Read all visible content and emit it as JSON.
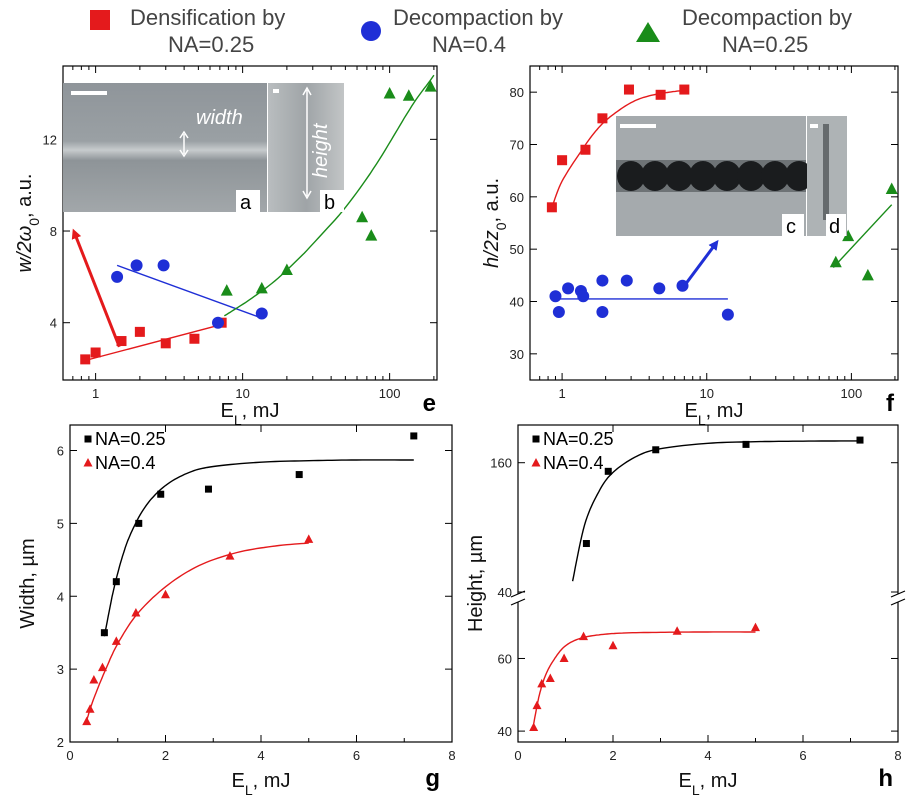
{
  "legend": [
    {
      "label_line1": "Densification by",
      "label_line2": "NA=0.25",
      "marker": "square",
      "color": "#e41a1c"
    },
    {
      "label_line1": "Decompaction by",
      "label_line2": "NA=0.4",
      "marker": "circle",
      "color": "#1f2fd6"
    },
    {
      "label_line1": "Decompaction by",
      "label_line2": "NA=0.25",
      "marker": "triangle",
      "color": "#1a8c1a"
    }
  ],
  "insets": {
    "a": {
      "tag": "a",
      "text": "width"
    },
    "b": {
      "tag": "b",
      "text": "height"
    },
    "c": {
      "tag": "c"
    },
    "d": {
      "tag": "d"
    }
  },
  "chart_data": [
    {
      "id": "e",
      "panel_label": "e",
      "type": "scatter",
      "xscale": "log",
      "xlabel": "E_L, mJ",
      "xlabel_main": "E",
      "xlabel_sub": "L",
      "xlabel_rest": ", mJ",
      "ylabel": "w/2ω0, a.u.",
      "ylabel_pre": "w/2ω",
      "ylabel_sub": "0",
      "ylabel_rest": ", a.u.",
      "xlim": [
        0.6,
        210
      ],
      "ylim": [
        1.5,
        15.2
      ],
      "xticks": [
        1,
        10,
        100
      ],
      "yticks": [
        4,
        8,
        12
      ],
      "series": [
        {
          "marker": "square",
          "color": "#e41a1c",
          "x": [
            0.85,
            1.0,
            1.5,
            2.0,
            3.0,
            4.7,
            7.2
          ],
          "y": [
            2.4,
            2.7,
            3.2,
            3.6,
            3.1,
            3.3,
            4.0
          ],
          "fit": {
            "type": "line",
            "x": [
              0.85,
              7.5
            ],
            "y": [
              2.35,
              3.95
            ]
          }
        },
        {
          "marker": "circle",
          "color": "#1f2fd6",
          "x": [
            1.4,
            1.9,
            2.9,
            6.8,
            13.5
          ],
          "y": [
            6.0,
            6.5,
            6.5,
            4.0,
            4.4
          ],
          "fit": {
            "type": "line",
            "x": [
              1.4,
              13.5
            ],
            "y": [
              6.5,
              4.2
            ]
          }
        },
        {
          "marker": "triangle",
          "color": "#1a8c1a",
          "x": [
            7.8,
            13.5,
            20,
            65,
            75,
            100,
            135,
            190
          ],
          "y": [
            5.4,
            5.5,
            6.3,
            8.6,
            7.8,
            14.0,
            13.9,
            14.3
          ],
          "fit": {
            "type": "curve",
            "x": [
              7.5,
              10,
              15,
              25,
              40,
              70,
              110,
              150,
              200
            ],
            "y": [
              4.3,
              4.8,
              5.6,
              6.9,
              8.3,
              10.3,
              12.3,
              13.7,
              14.8
            ]
          }
        }
      ],
      "arrow_color": "#e41a1c"
    },
    {
      "id": "f",
      "panel_label": "f",
      "type": "scatter",
      "xscale": "log",
      "xlabel": "E_L, mJ",
      "xlabel_main": "E",
      "xlabel_sub": "L",
      "xlabel_rest": ", mJ",
      "ylabel": "h/2z0, a.u.",
      "ylabel_pre": "h/2z",
      "ylabel_sub": "0",
      "ylabel_rest": ", a.u.",
      "xlim": [
        0.6,
        210
      ],
      "ylim": [
        25,
        85
      ],
      "xticks": [
        1,
        10,
        100
      ],
      "yticks": [
        30,
        40,
        50,
        60,
        70,
        80
      ],
      "series": [
        {
          "marker": "square",
          "color": "#e41a1c",
          "x": [
            0.85,
            1.0,
            1.45,
            1.9,
            2.9,
            4.8,
            7.0
          ],
          "y": [
            58,
            67,
            69,
            75,
            80.5,
            79.5,
            80.5
          ],
          "fit": {
            "type": "curve",
            "x": [
              0.85,
              1.0,
              1.3,
              1.7,
              2.2,
              3.0,
              4.0,
              5.5,
              7.2
            ],
            "y": [
              58,
              63,
              68,
              72.5,
              75.5,
              78,
              79.3,
              80,
              80.4
            ]
          }
        },
        {
          "marker": "circle",
          "color": "#1f2fd6",
          "x": [
            0.9,
            0.95,
            1.1,
            1.35,
            1.4,
            1.9,
            1.9,
            2.8,
            4.7,
            6.8,
            14
          ],
          "y": [
            41,
            38,
            42.5,
            42,
            41,
            44,
            38,
            44,
            42.5,
            43,
            37.5
          ],
          "fit": {
            "type": "line",
            "x": [
              0.9,
              14
            ],
            "y": [
              40.5,
              40.5
            ]
          }
        },
        {
          "marker": "triangle",
          "color": "#1a8c1a",
          "x": [
            78,
            95,
            130,
            190
          ],
          "y": [
            47.5,
            52.5,
            45,
            61.5
          ],
          "fit": {
            "type": "line",
            "x": [
              75,
              190
            ],
            "y": [
              46.5,
              58.5
            ]
          }
        }
      ],
      "arrow_color": "#1f2fd6"
    },
    {
      "id": "g",
      "panel_label": "g",
      "type": "scatter",
      "xscale": "linear",
      "xlabel": "E_L, mJ",
      "xlabel_main": "E",
      "xlabel_sub": "L",
      "xlabel_rest": ", mJ",
      "ylabel": "Width, µm",
      "xlim": [
        0,
        8
      ],
      "ylim": [
        2,
        6.35
      ],
      "xticks": [
        0,
        2,
        4,
        6,
        8
      ],
      "yticks": [
        2,
        3,
        4,
        5,
        6
      ],
      "legend_entries": [
        "NA=0.25",
        "NA=0.4"
      ],
      "series": [
        {
          "name": "NA=0.25",
          "marker": "square",
          "color": "#000000",
          "x": [
            0.72,
            0.97,
            1.44,
            1.9,
            2.9,
            4.8,
            7.2
          ],
          "y": [
            3.5,
            4.2,
            5.0,
            5.4,
            5.47,
            5.67,
            6.2
          ],
          "fit": {
            "type": "curve",
            "x": [
              0.72,
              0.9,
              1.1,
              1.3,
              1.6,
              2.0,
              2.5,
              3.0,
              4.0,
              5.0,
              6.0,
              7.2
            ],
            "y": [
              3.45,
              4.05,
              4.55,
              4.9,
              5.25,
              5.52,
              5.7,
              5.78,
              5.84,
              5.86,
              5.87,
              5.87
            ]
          }
        },
        {
          "name": "NA=0.4",
          "marker": "triangle",
          "color": "#e41a1c",
          "x": [
            0.35,
            0.42,
            0.5,
            0.68,
            0.97,
            1.38,
            2.0,
            3.35,
            5.0
          ],
          "y": [
            2.28,
            2.45,
            2.85,
            3.02,
            3.38,
            3.77,
            4.02,
            4.55,
            4.78
          ],
          "fit": {
            "type": "curve",
            "x": [
              0.35,
              0.5,
              0.75,
              1.0,
              1.4,
              2.0,
              2.7,
              3.5,
              4.3,
              5.0
            ],
            "y": [
              2.3,
              2.6,
              3.0,
              3.35,
              3.75,
              4.13,
              4.42,
              4.6,
              4.69,
              4.73
            ]
          }
        }
      ]
    },
    {
      "id": "h",
      "panel_label": "h",
      "type": "scatter",
      "xscale": "linear",
      "broken_y_axis": true,
      "xlabel": "E_L, mJ",
      "xlabel_main": "E",
      "xlabel_sub": "L",
      "xlabel_rest": ", mJ",
      "ylabel": "Height, µm",
      "xlim": [
        0,
        8
      ],
      "xticks": [
        0,
        2,
        4,
        6,
        8
      ],
      "y_upper": {
        "ylim": [
          40,
          195
        ],
        "yticks": [
          40,
          160
        ]
      },
      "y_lower": {
        "ylim": [
          37,
          75
        ],
        "yticks": [
          40,
          60
        ]
      },
      "legend_entries": [
        "NA=0.25",
        "NA=0.4"
      ],
      "series": [
        {
          "name": "NA=0.25",
          "marker": "square",
          "color": "#000000",
          "segment": "upper",
          "x": [
            1.44,
            1.9,
            2.9,
            4.8,
            7.2
          ],
          "y": [
            85,
            152,
            172,
            177,
            181
          ],
          "fit": {
            "type": "curve",
            "x": [
              1.15,
              1.4,
              1.7,
              2.0,
              2.5,
              3.0,
              4.0,
              5.0,
              6.0,
              7.2
            ],
            "y": [
              50,
              102,
              133,
              151,
              166,
              173,
              178,
              179.5,
              180,
              180.3
            ]
          }
        },
        {
          "name": "NA=0.4",
          "marker": "triangle",
          "color": "#e41a1c",
          "segment": "lower",
          "x": [
            0.33,
            0.4,
            0.5,
            0.68,
            0.97,
            1.38,
            2.0,
            3.35,
            5.0
          ],
          "y": [
            41,
            47,
            53,
            54.5,
            60,
            66,
            63.5,
            67.5,
            68.5
          ],
          "fit": {
            "type": "curve",
            "x": [
              0.33,
              0.45,
              0.6,
              0.8,
              1.0,
              1.3,
              1.7,
              2.2,
              3.0,
              4.0,
              5.0
            ],
            "y": [
              42,
              50,
              56,
              60.5,
              63.5,
              65.5,
              66.5,
              67,
              67.2,
              67.3,
              67.3
            ]
          }
        }
      ]
    }
  ]
}
